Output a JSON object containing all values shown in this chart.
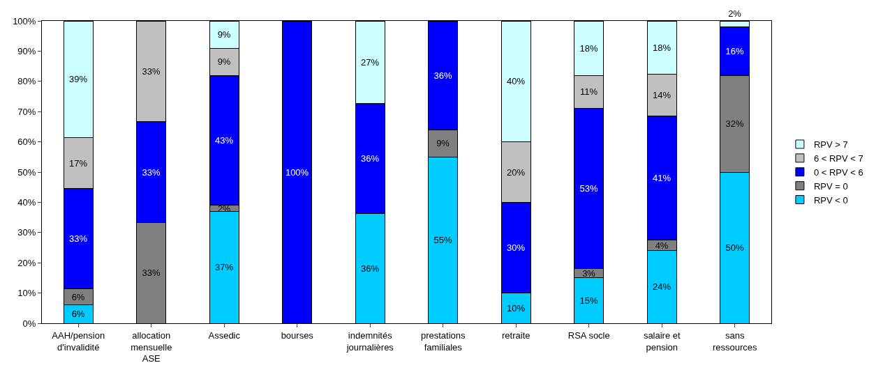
{
  "chart_data": {
    "type": "bar",
    "stacked": true,
    "categories": [
      "AAH/pension\nd'invalidité",
      "allocation\nmensuelle\nASE",
      "Assedic",
      "bourses",
      "indemnités\njournalières",
      "prestations\nfamiliales",
      "retraite",
      "RSA socle",
      "salaire et\npension",
      "sans\nressources"
    ],
    "series": [
      {
        "name": "RPV < 0",
        "color": "#00ccff",
        "values": [
          6,
          0,
          37,
          0,
          36.4,
          55,
          10,
          15,
          24,
          50
        ],
        "value_labels": [
          "6%",
          null,
          "37%",
          null,
          "36%",
          "55%",
          "10%",
          "15%",
          "24%",
          "50%"
        ]
      },
      {
        "name": "RPV = 0",
        "color": "#808080",
        "values": [
          5.5,
          33.3,
          2,
          0,
          0,
          9,
          0,
          3,
          3.5,
          32
        ],
        "value_labels": [
          "6%",
          "33%",
          "2%",
          null,
          null,
          "9%",
          null,
          "3%",
          "4%",
          "32%"
        ]
      },
      {
        "name": "0 < RPV < 6",
        "color": "#0000ff",
        "values": [
          33,
          33.4,
          43,
          100,
          36.4,
          36,
          30,
          53,
          41,
          16
        ],
        "value_labels": [
          "33%",
          "33%",
          "43%",
          "100%",
          "36%",
          "36%",
          "30%",
          "53%",
          "41%",
          "16%"
        ]
      },
      {
        "name": "6 < RPV < 7",
        "color": "#c0c0c0",
        "values": [
          16.8,
          33.3,
          9,
          0,
          0,
          0,
          20,
          11,
          13.8,
          0
        ],
        "value_labels": [
          "17%",
          "33%",
          "9%",
          null,
          null,
          null,
          "20%",
          "11%",
          "14%",
          null
        ]
      },
      {
        "name": "RPV > 7",
        "color": "#ccffff",
        "values": [
          38.7,
          0,
          9,
          0,
          27.2,
          0,
          40,
          18,
          17.7,
          2
        ],
        "value_labels": [
          "39%",
          null,
          "9%",
          null,
          "27%",
          null,
          "40%",
          "18%",
          "18%",
          "2%"
        ]
      }
    ],
    "ylim": [
      0,
      100
    ],
    "yticks": [
      {
        "value": 0,
        "label": "0%"
      },
      {
        "value": 10,
        "label": "10%"
      },
      {
        "value": 20,
        "label": "20%"
      },
      {
        "value": 30,
        "label": "30%"
      },
      {
        "value": 40,
        "label": "40%"
      },
      {
        "value": 50,
        "label": "50%"
      },
      {
        "value": 60,
        "label": "60%"
      },
      {
        "value": 70,
        "label": "70%"
      },
      {
        "value": 80,
        "label": "80%"
      },
      {
        "value": 90,
        "label": "90%"
      },
      {
        "value": 100,
        "label": "100%"
      }
    ],
    "grid": false,
    "legend": "right"
  }
}
